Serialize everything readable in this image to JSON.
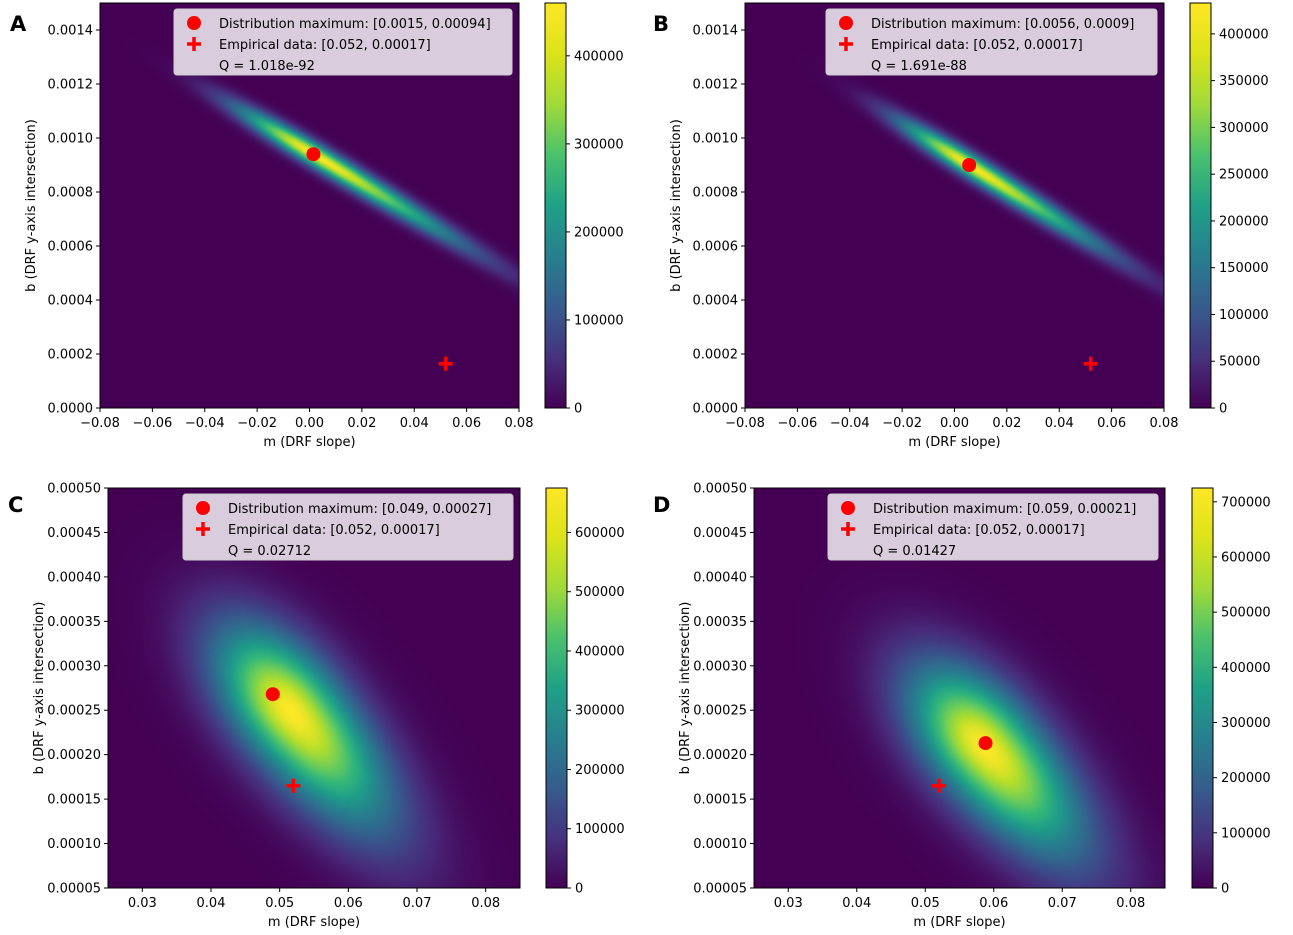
{
  "chart_data": [
    {
      "type": "heatmap",
      "panel_label": "A",
      "xlabel": "m (DRF slope)",
      "ylabel": "b (DRF y-axis intersection)",
      "xlim": [
        -0.08,
        0.08
      ],
      "ylim": [
        0,
        0.0015
      ],
      "x_ticks": [
        "−0.08",
        "−0.06",
        "−0.04",
        "−0.02",
        "0.00",
        "0.02",
        "0.04",
        "0.06",
        "0.08"
      ],
      "y_ticks": [
        "0.0000",
        "0.0002",
        "0.0004",
        "0.0006",
        "0.0008",
        "0.0010",
        "0.0012",
        "0.0014"
      ],
      "colorbar": {
        "min": 0,
        "max": 460000,
        "ticks": [
          "0",
          "100000",
          "200000",
          "300000",
          "400000"
        ]
      },
      "distribution": {
        "center": [
          0.0015,
          0.00094
        ],
        "sigma_major": 0.24,
        "sigma_minor": 0.019,
        "angle_deg": 32,
        "tail_ratio": 2.1
      },
      "legend": {
        "position": "top-right",
        "maximum_label": "Distribution maximum: [0.0015, 0.00094]",
        "empirical_label": "Empirical data: [0.052, 0.00017]",
        "q_label": "Q = 1.018e-92"
      },
      "maximum_point": [
        0.0015,
        0.00094
      ],
      "empirical_point": [
        0.052,
        0.000164
      ],
      "marker_color": "#ff0000"
    },
    {
      "type": "heatmap",
      "panel_label": "B",
      "xlabel": "m (DRF slope)",
      "ylabel": "b (DRF y-axis intersection)",
      "xlim": [
        -0.08,
        0.08
      ],
      "ylim": [
        0,
        0.0015
      ],
      "x_ticks": [
        "−0.08",
        "−0.06",
        "−0.04",
        "−0.02",
        "0.00",
        "0.02",
        "0.04",
        "0.06",
        "0.08"
      ],
      "y_ticks": [
        "0.0000",
        "0.0002",
        "0.0004",
        "0.0006",
        "0.0008",
        "0.0010",
        "0.0012",
        "0.0014"
      ],
      "colorbar": {
        "min": 0,
        "max": 433000,
        "ticks": [
          "0",
          "50000",
          "100000",
          "150000",
          "200000",
          "250000",
          "300000",
          "350000",
          "400000"
        ]
      },
      "distribution": {
        "center": [
          0.0056,
          0.0009
        ],
        "sigma_major": 0.22,
        "sigma_minor": 0.019,
        "angle_deg": 33,
        "tail_ratio": 2.1
      },
      "legend": {
        "position": "top-right",
        "maximum_label": "Distribution maximum: [0.0056, 0.0009]",
        "empirical_label": "Empirical data: [0.052, 0.00017]",
        "q_label": "Q = 1.691e-88"
      },
      "maximum_point": [
        0.0056,
        0.0009
      ],
      "empirical_point": [
        0.052,
        0.000164
      ],
      "marker_color": "#ff0000"
    },
    {
      "type": "heatmap",
      "panel_label": "C",
      "xlabel": "m (DRF slope)",
      "ylabel": "b (DRF y-axis intersection)",
      "xlim": [
        0.025,
        0.085
      ],
      "ylim": [
        5e-05,
        0.0005
      ],
      "x_ticks": [
        "0.03",
        "0.04",
        "0.05",
        "0.06",
        "0.07",
        "0.08"
      ],
      "y_ticks": [
        "0.00005",
        "0.00010",
        "0.00015",
        "0.00020",
        "0.00025",
        "0.00030",
        "0.00035",
        "0.00040",
        "0.00045",
        "0.00050"
      ],
      "colorbar": {
        "min": 0,
        "max": 675000,
        "ticks": [
          "0",
          "100000",
          "200000",
          "300000",
          "400000",
          "500000",
          "600000"
        ]
      },
      "distribution": {
        "center": [
          0.0515,
          0.00025
        ],
        "sigma_major": 0.28,
        "sigma_minor": 0.09,
        "angle_deg": 52,
        "tail_ratio": 1.6
      },
      "legend": {
        "position": "top-right",
        "maximum_label": "Distribution maximum: [0.049, 0.00027]",
        "empirical_label": "Empirical data: [0.052, 0.00017]",
        "q_label": "Q = 0.02712"
      },
      "maximum_point": [
        0.049,
        0.000268
      ],
      "empirical_point": [
        0.052,
        0.000165
      ],
      "marker_color": "#ff0000"
    },
    {
      "type": "heatmap",
      "panel_label": "D",
      "xlabel": "m (DRF slope)",
      "ylabel": "b (DRF y-axis intersection)",
      "xlim": [
        0.025,
        0.085
      ],
      "ylim": [
        5e-05,
        0.0005
      ],
      "x_ticks": [
        "0.03",
        "0.04",
        "0.05",
        "0.06",
        "0.07",
        "0.08"
      ],
      "y_ticks": [
        "0.00005",
        "0.00010",
        "0.00015",
        "0.00020",
        "0.00025",
        "0.00030",
        "0.00035",
        "0.00040",
        "0.00045",
        "0.00050"
      ],
      "colorbar": {
        "min": 0,
        "max": 725000,
        "ticks": [
          "0",
          "100000",
          "200000",
          "300000",
          "400000",
          "500000",
          "600000",
          "700000"
        ]
      },
      "distribution": {
        "center": [
          0.0585,
          0.00021
        ],
        "sigma_major": 0.27,
        "sigma_minor": 0.09,
        "angle_deg": 50,
        "tail_ratio": 1.6
      },
      "legend": {
        "position": "top-right",
        "maximum_label": "Distribution maximum: [0.059, 0.00021]",
        "empirical_label": "Empirical data: [0.052, 0.00017]",
        "q_label": "Q = 0.01427"
      },
      "maximum_point": [
        0.0588,
        0.000213
      ],
      "empirical_point": [
        0.052,
        0.000165
      ],
      "marker_color": "#ff0000"
    }
  ]
}
